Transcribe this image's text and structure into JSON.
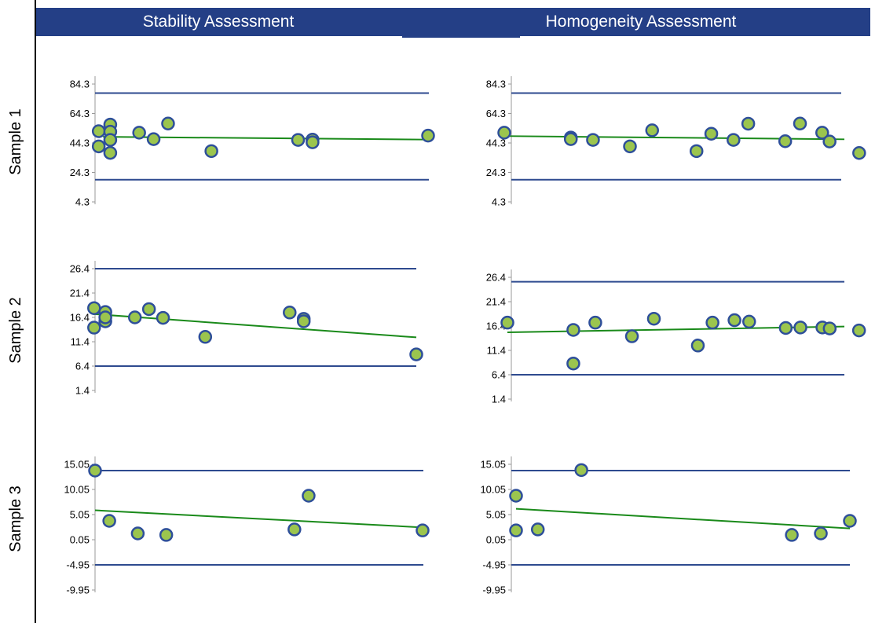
{
  "headers": {
    "stability": "Stability Assessment",
    "homogeneity": "Homogeneity Assessment"
  },
  "rows": [
    "Sample 1",
    "Sample 2",
    "Sample 3"
  ],
  "colors": {
    "header_bg": "#243f86",
    "header_text": "#ffffff",
    "limit_line": "#2e4a8f",
    "trend_line": "#1a8a1a",
    "point_fill": "#9bc54e",
    "point_stroke": "#2e4f9a"
  },
  "chart_data": [
    {
      "type": "scatter",
      "panel": "Sample 1 / Stability Assessment",
      "yticks": [
        "84.3",
        "64.3",
        "44.3",
        "24.3",
        "4.3"
      ],
      "ylim": [
        4.3,
        84.3
      ],
      "xlim": [
        0,
        23
      ],
      "upper_limit": 78.2,
      "lower_limit": 19.4,
      "trend": [
        [
          0.5,
          48.5
        ],
        [
          23,
          46.6
        ]
      ],
      "points": [
        [
          0.2,
          52.3
        ],
        [
          0.2,
          42.0
        ],
        [
          1.0,
          56.8
        ],
        [
          1.0,
          52.0
        ],
        [
          1.0,
          46.4
        ],
        [
          1.0,
          37.6
        ],
        [
          3.0,
          51.3
        ],
        [
          4.0,
          46.9
        ],
        [
          5.0,
          57.5
        ],
        [
          8.0,
          38.8
        ],
        [
          14.0,
          46.4
        ],
        [
          15.0,
          46.6
        ],
        [
          15.0,
          44.8
        ],
        [
          23.0,
          49.3
        ]
      ],
      "legend": "none",
      "grid": false
    },
    {
      "type": "scatter",
      "panel": "Sample 1 / Homogeneity Assessment",
      "yticks": [
        "84.3",
        "64.3",
        "44.3",
        "24.3",
        "4.3"
      ],
      "ylim": [
        4.3,
        84.3
      ],
      "xlim": [
        0,
        23
      ],
      "upper_limit": 78.2,
      "lower_limit": 19.4,
      "trend": [
        [
          0,
          49.0
        ],
        [
          23,
          46.8
        ]
      ],
      "points": [
        [
          0,
          51.3
        ],
        [
          4.5,
          48.0
        ],
        [
          4.5,
          46.9
        ],
        [
          6.0,
          46.4
        ],
        [
          8.5,
          42.0
        ],
        [
          10.0,
          52.9
        ],
        [
          13.0,
          38.8
        ],
        [
          14.0,
          50.6
        ],
        [
          15.5,
          46.4
        ],
        [
          16.5,
          57.4
        ],
        [
          19.0,
          45.5
        ],
        [
          20.0,
          57.5
        ],
        [
          21.5,
          51.3
        ],
        [
          22.0,
          45.3
        ],
        [
          24.0,
          37.5
        ]
      ],
      "legend": "none",
      "grid": false
    },
    {
      "type": "scatter",
      "panel": "Sample 2 / Stability Assessment",
      "yticks": [
        "26.4",
        "21.4",
        "16.4",
        "11.4",
        "6.4",
        "1.4"
      ],
      "ylim": [
        1.4,
        26.4
      ],
      "xlim": [
        0,
        23
      ],
      "upper_limit": 26.4,
      "lower_limit": 6.4,
      "trend": [
        [
          0,
          17.1
        ],
        [
          23,
          12.3
        ]
      ],
      "points": [
        [
          0.1,
          18.3
        ],
        [
          0.1,
          14.3
        ],
        [
          0.9,
          17.5
        ],
        [
          0.9,
          15.6
        ],
        [
          0.9,
          16.4
        ],
        [
          3.0,
          16.4
        ],
        [
          4.0,
          18.1
        ],
        [
          5.0,
          16.3
        ],
        [
          8.0,
          12.4
        ],
        [
          14.0,
          17.4
        ],
        [
          15.0,
          16.1
        ],
        [
          15.0,
          15.6
        ],
        [
          23.0,
          8.8
        ]
      ],
      "legend": "none",
      "grid": false
    },
    {
      "type": "scatter",
      "panel": "Sample 2 / Homogeneity Assessment",
      "yticks": [
        "26.4",
        "21.4",
        "16.4",
        "11.4",
        "6.4",
        "1.4"
      ],
      "ylim": [
        1.4,
        26.4
      ],
      "xlim": [
        0,
        23
      ],
      "upper_limit": 25.5,
      "lower_limit": 6.4,
      "trend": [
        [
          0,
          15.1
        ],
        [
          23,
          16.3
        ]
      ],
      "points": [
        [
          0,
          17.1
        ],
        [
          4.5,
          15.6
        ],
        [
          4.5,
          8.7
        ],
        [
          6.0,
          17.1
        ],
        [
          8.5,
          14.3
        ],
        [
          10.0,
          17.9
        ],
        [
          13.0,
          12.4
        ],
        [
          14.0,
          17.1
        ],
        [
          15.5,
          17.6
        ],
        [
          16.5,
          17.3
        ],
        [
          19.0,
          16.0
        ],
        [
          20.0,
          16.1
        ],
        [
          21.5,
          16.1
        ],
        [
          22.0,
          15.9
        ],
        [
          24.0,
          15.5
        ]
      ],
      "legend": "none",
      "grid": false
    },
    {
      "type": "scatter",
      "panel": "Sample 3 / Stability Assessment",
      "yticks": [
        "15.05",
        "10.05",
        "5.05",
        "0.05",
        "-4.95",
        "-9.95"
      ],
      "ylim": [
        -9.95,
        15.05
      ],
      "xlim": [
        0,
        23
      ],
      "upper_limit": 13.8,
      "lower_limit": -4.95,
      "trend": [
        [
          0,
          5.9
        ],
        [
          23,
          2.5
        ]
      ],
      "points": [
        [
          0,
          13.8
        ],
        [
          1.0,
          3.8
        ],
        [
          3.0,
          1.3
        ],
        [
          5.0,
          1.0
        ],
        [
          14.0,
          2.1
        ],
        [
          15.0,
          8.8
        ],
        [
          23.0,
          1.9
        ]
      ],
      "legend": "none",
      "grid": false
    },
    {
      "type": "scatter",
      "panel": "Sample 3 / Homogeneity Assessment",
      "yticks": [
        "15.05",
        "10.05",
        "5.05",
        "0.05",
        "-4.95",
        "-9.95"
      ],
      "ylim": [
        -9.95,
        15.05
      ],
      "xlim": [
        0,
        23
      ],
      "upper_limit": 13.8,
      "lower_limit": -4.95,
      "trend": [
        [
          0,
          6.2
        ],
        [
          23,
          2.3
        ]
      ],
      "points": [
        [
          0,
          8.8
        ],
        [
          0,
          1.9
        ],
        [
          1.5,
          2.1
        ],
        [
          4.5,
          13.9
        ],
        [
          19.0,
          1.0
        ],
        [
          21.0,
          1.3
        ],
        [
          23.0,
          3.8
        ]
      ],
      "legend": "none",
      "grid": false
    }
  ]
}
